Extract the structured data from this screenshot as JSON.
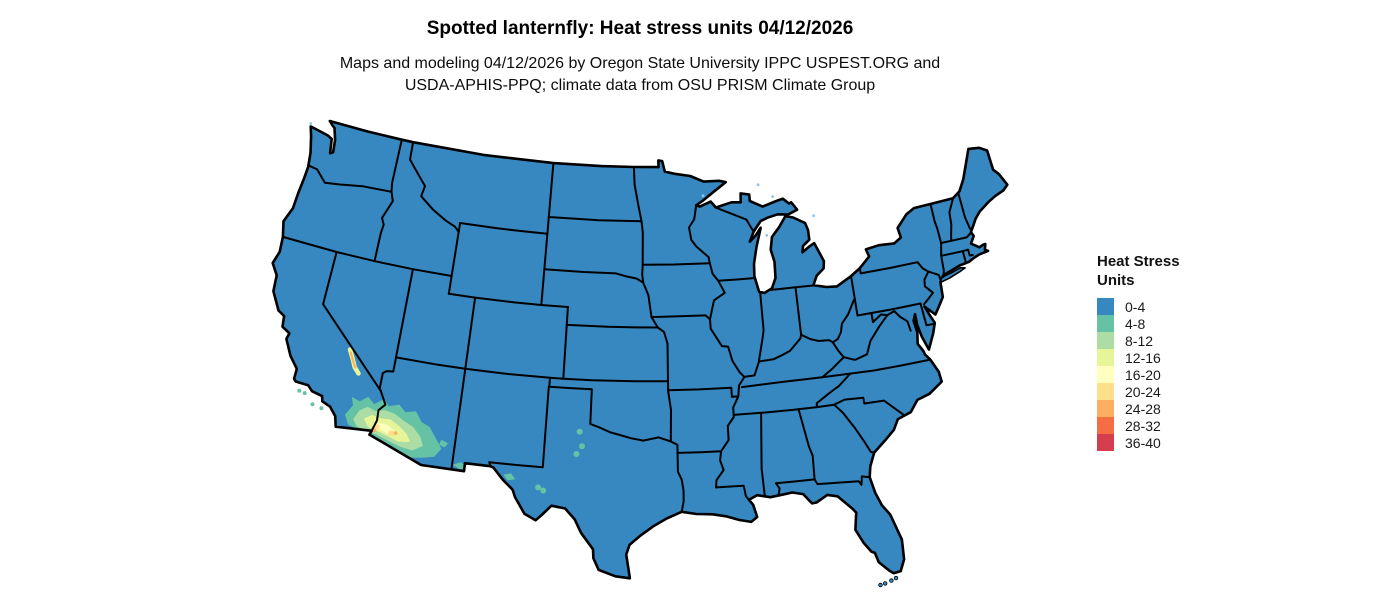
{
  "header": {
    "title": "Spotted lanternfly: Heat stress units 04/12/2026",
    "subtitle_line1": "Maps and modeling 04/12/2026 by Oregon State University IPPC USPEST.ORG and",
    "subtitle_line2": "USDA-APHIS-PPQ; climate data from OSU PRISM Climate Group"
  },
  "legend": {
    "title_line1": "Heat Stress",
    "title_line2": "Units",
    "items": [
      {
        "label": "0-4",
        "color": "#3788c0"
      },
      {
        "label": "4-8",
        "color": "#66c2a5"
      },
      {
        "label": "8-12",
        "color": "#abdda4"
      },
      {
        "label": "12-16",
        "color": "#e6f598"
      },
      {
        "label": "16-20",
        "color": "#ffffbf"
      },
      {
        "label": "20-24",
        "color": "#fee08b"
      },
      {
        "label": "24-28",
        "color": "#fdae61"
      },
      {
        "label": "28-32",
        "color": "#f46d43"
      },
      {
        "label": "36-40",
        "color": "#d53e4f"
      }
    ]
  },
  "map": {
    "border_color": "#000000",
    "background": "#ffffff"
  },
  "chart_data": {
    "type": "heatmap",
    "title": "Spotted lanternfly: Heat stress units 04/12/2026",
    "legend_title": "Heat Stress Units",
    "legend_position": "right",
    "classes": [
      {
        "range": "0-4",
        "color": "#3788c0"
      },
      {
        "range": "4-8",
        "color": "#66c2a5"
      },
      {
        "range": "8-12",
        "color": "#abdda4"
      },
      {
        "range": "12-16",
        "color": "#e6f598"
      },
      {
        "range": "16-20",
        "color": "#ffffbf"
      },
      {
        "range": "20-24",
        "color": "#fee08b"
      },
      {
        "range": "24-28",
        "color": "#fdae61"
      },
      {
        "range": "28-32",
        "color": "#f46d43"
      },
      {
        "range": "36-40",
        "color": "#d53e4f"
      }
    ],
    "regions": [
      {
        "area": "Contiguous United States, nearly all states",
        "value": "0-4"
      },
      {
        "area": "Sonoran Desert: southeastern California and southwestern/central Arizona (Yuma to Phoenix area)",
        "value": "4-24 gradient with small 24-32 pockets"
      },
      {
        "area": "Death Valley region, eastern California",
        "value": "12-28 narrow strip"
      },
      {
        "area": "Scattered small patches, west Texas",
        "value": "4-8"
      },
      {
        "area": "New Mexico bootheel / far west Texas border patches",
        "value": "4-8"
      }
    ]
  }
}
